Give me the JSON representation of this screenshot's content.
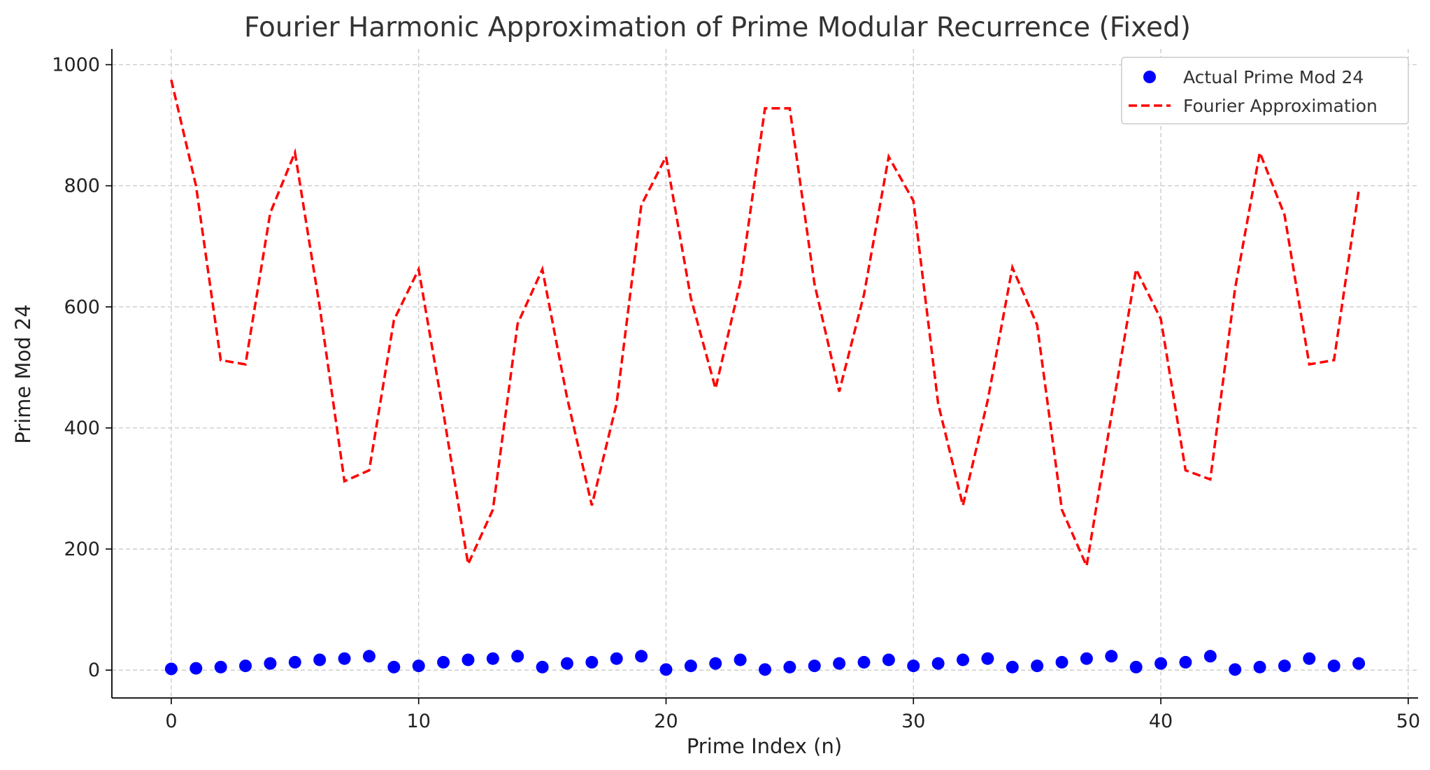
{
  "chart_data": {
    "type": "scatter",
    "title": "Fourier Harmonic Approximation of Prime Modular Recurrence (Fixed)",
    "xlabel": "Prime Index (n)",
    "ylabel": "Prime Mod 24",
    "xlim": [
      -2.4,
      50.4
    ],
    "ylim": [
      -46,
      1026
    ],
    "x_ticks": [
      0,
      10,
      20,
      30,
      40,
      50
    ],
    "y_ticks": [
      0,
      200,
      400,
      600,
      800,
      1000
    ],
    "grid": true,
    "legend_position": "top-right",
    "series": [
      {
        "name": "Actual Prime Mod 24",
        "kind": "scatter",
        "color": "#0000ff",
        "x": [
          0,
          1,
          2,
          3,
          4,
          5,
          6,
          7,
          8,
          9,
          10,
          11,
          12,
          13,
          14,
          15,
          16,
          17,
          18,
          19,
          20,
          21,
          22,
          23,
          24,
          25,
          26,
          27,
          28,
          29,
          30,
          31,
          32,
          33,
          34,
          35,
          36,
          37,
          38,
          39,
          40,
          41,
          42,
          43,
          44,
          45,
          46,
          47,
          48
        ],
        "y": [
          2,
          3,
          5,
          7,
          11,
          13,
          17,
          19,
          23,
          5,
          7,
          13,
          17,
          19,
          23,
          5,
          11,
          13,
          19,
          23,
          1,
          7,
          11,
          17,
          1,
          5,
          7,
          11,
          13,
          17,
          7,
          11,
          17,
          19,
          5,
          7,
          13,
          19,
          23,
          5,
          11,
          13,
          23,
          1,
          5,
          7,
          19,
          7,
          11
        ]
      },
      {
        "name": "Fourier Approximation",
        "kind": "line",
        "style": "dashed",
        "color": "#ff0000",
        "x": [
          0,
          1,
          2,
          3,
          4,
          5,
          6,
          7,
          8,
          9,
          10,
          11,
          12,
          13,
          14,
          15,
          16,
          17,
          18,
          19,
          20,
          21,
          22,
          23,
          24,
          25,
          26,
          27,
          28,
          29,
          30,
          31,
          32,
          33,
          34,
          35,
          36,
          37,
          38,
          39,
          40,
          41,
          42,
          43,
          44,
          45,
          46,
          47,
          48
        ],
        "y": [
          975,
          800,
          512,
          505,
          755,
          855,
          600,
          312,
          330,
          578,
          662,
          425,
          175,
          265,
          572,
          662,
          450,
          272,
          440,
          768,
          848,
          615,
          465,
          640,
          928,
          928,
          638,
          460,
          620,
          848,
          775,
          440,
          272,
          445,
          665,
          570,
          265,
          172,
          420,
          662,
          580,
          330,
          315,
          630,
          855,
          752,
          505,
          512,
          792
        ]
      }
    ]
  }
}
